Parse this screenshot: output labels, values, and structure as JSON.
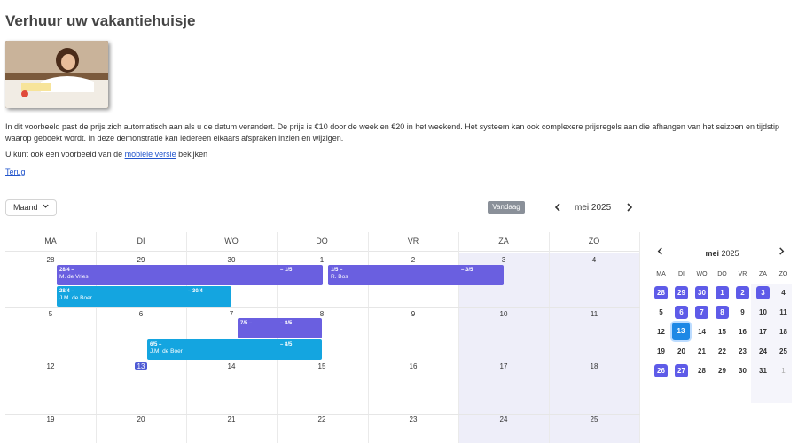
{
  "page": {
    "title": "Verhuur uw vakantiehuisje",
    "description": "In dit voorbeeld past de prijs zich automatisch aan als u de datum verandert. De prijs is €10 door de week en €20 in het weekend. Het systeem kan ook complexere prijsregels aan die afhangen van het seizoen en tijdstip waarop geboekt wordt. In deze demonstratie kan iedereen elkaars afspraken inzien en wijzigen.",
    "mobile_prefix": "U kunt ook een voorbeeld van de ",
    "mobile_link": "mobiele versie",
    "mobile_suffix": " bekijken",
    "back_link": "Terug"
  },
  "toolbar": {
    "view_select": "Maand",
    "today_button": "Vandaag",
    "period": "mei 2025",
    "prev_icon": "chevron-left-icon",
    "next_icon": "chevron-right-icon"
  },
  "calendar": {
    "weekdays": [
      "MA",
      "DI",
      "WO",
      "DO",
      "VR",
      "ZA",
      "ZO"
    ],
    "weeks": [
      [
        "28",
        "29",
        "30",
        "1",
        "2",
        "3",
        "4"
      ],
      [
        "5",
        "6",
        "7",
        "8",
        "9",
        "10",
        "11"
      ],
      [
        "12",
        "13",
        "14",
        "15",
        "16",
        "17",
        "18"
      ],
      [
        "19",
        "20",
        "21",
        "22",
        "23",
        "24",
        "25"
      ]
    ],
    "today": "13",
    "events": [
      {
        "l1": "28/4 –",
        "l2": "M. de Vries",
        "seg1": "– 1/5",
        "color": "#6a5fe0"
      },
      {
        "l1": "1/5 –",
        "l2": "R. Bos",
        "seg1": "– 3/5",
        "color": "#6a5fe0"
      },
      {
        "l1": "28/4 –",
        "l2": "J.M. de Boer",
        "seg1": "– 30/4",
        "color": "#14a5e0"
      },
      {
        "l1": "7/5 –",
        "l2": "",
        "seg1": "– 8/5",
        "color": "#6a5fe0"
      },
      {
        "l1": "6/5 –",
        "l2": "J.M. de Boer",
        "seg1": "– 8/5",
        "color": "#14a5e0"
      }
    ]
  },
  "mini_calendar": {
    "month": "mei",
    "year": "2025",
    "weekdays": [
      "MA",
      "DI",
      "WO",
      "DO",
      "VR",
      "ZA",
      "ZO"
    ],
    "weeks": [
      [
        "28",
        "29",
        "30",
        "1",
        "2",
        "3",
        "4"
      ],
      [
        "5",
        "6",
        "7",
        "8",
        "9",
        "10",
        "11"
      ],
      [
        "12",
        "13",
        "14",
        "15",
        "16",
        "17",
        "18"
      ],
      [
        "19",
        "20",
        "21",
        "22",
        "23",
        "24",
        "25"
      ],
      [
        "26",
        "27",
        "28",
        "29",
        "30",
        "31",
        "1"
      ]
    ]
  },
  "colors": {
    "booking_purple": "#6a5fe0",
    "booking_cyan": "#14a5e0",
    "today_blue": "#1e88e5",
    "weekend_bg": "#eeeef9"
  }
}
